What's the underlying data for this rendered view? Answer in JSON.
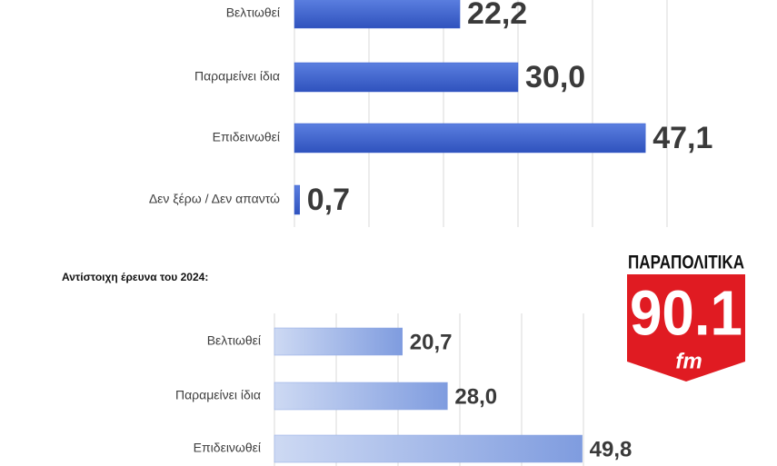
{
  "chart_data": [
    {
      "type": "bar",
      "orientation": "horizontal",
      "categories": [
        "Βελτιωθεί",
        "Παραμείνει ίδια",
        "Επιδεινωθεί",
        "Δεν ξέρω / Δεν απαντώ"
      ],
      "values": [
        22.2,
        30.0,
        47.1,
        0.7
      ],
      "value_labels": [
        "22,2",
        "30,0",
        "47,1",
        "0,7"
      ],
      "color": "#3a61cf",
      "xlim": [
        0,
        50
      ],
      "xticks": [
        0,
        10,
        20,
        30,
        40,
        50
      ],
      "grid": true
    },
    {
      "type": "bar",
      "orientation": "horizontal",
      "title": "Αντίστοιχη έρευνα του 2024:",
      "categories": [
        "Βελτιωθεί",
        "Παραμείνει ίδια",
        "Επιδεινωθεί"
      ],
      "values": [
        20.7,
        28.0,
        49.8
      ],
      "value_labels": [
        "20,7",
        "28,0",
        "49,8"
      ],
      "color": "#8aa5e3",
      "xlim": [
        0,
        50
      ],
      "xticks": [
        0,
        10,
        20,
        30,
        40,
        50
      ],
      "grid": true
    }
  ],
  "logo": {
    "name": "ΠΑΡΑΠΟΛΙΤΙΚΑ",
    "frequency": "90.1",
    "band": "fm"
  }
}
